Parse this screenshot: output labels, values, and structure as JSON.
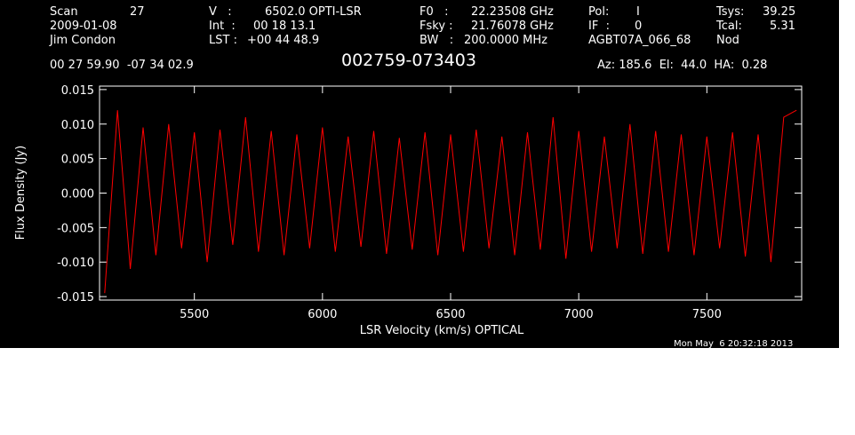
{
  "header": {
    "scan_label": "Scan",
    "scan_number": "27",
    "date": "2009-01-08",
    "observer": "Jim Condon",
    "velocity_label": "V   :",
    "velocity_value": "6502.0 OPTI-LSR",
    "int_label": "Int  :",
    "int_value": "00 18 13.1",
    "lst_label": "LST :",
    "lst_value": "+00 44 48.9",
    "f0_label": "F0   :",
    "f0_value": "22.23508 GHz",
    "fsky_label": "Fsky :",
    "fsky_value": "21.76078 GHz",
    "bw_label": "BW   :",
    "bw_value": "200.0000 MHz",
    "pol_label": "Pol:",
    "pol_value": "I",
    "if_label": "IF  :",
    "if_value": "0",
    "project": "AGBT07A_066_68",
    "tsys_label": "Tsys:",
    "tsys_value": "39.25",
    "tcal_label": "Tcal:",
    "tcal_value": "5.31",
    "mode": "Nod",
    "coords": "00 27 59.90  -07 34 02.9",
    "source": "002759-073403",
    "az_el_ha": "Az: 185.6  El:  44.0  HA:  0.28",
    "timestamp": "Mon May  6 20:32:18 2013"
  },
  "colors": {
    "background": "#000000",
    "axes": "#ffffff",
    "series": "#ff0000"
  },
  "chart_data": {
    "type": "line",
    "xlabel": "LSR Velocity (km/s) OPTICAL",
    "ylabel": "Flux Density (Jy)",
    "xlim": [
      5130,
      7870
    ],
    "ylim": [
      -0.0155,
      0.0155
    ],
    "xticks": [
      5500,
      6000,
      6500,
      7000,
      7500
    ],
    "xtick_labels": [
      "5500",
      "6000",
      "6500",
      "7000",
      "7500"
    ],
    "yticks": [
      -0.015,
      -0.01,
      -0.005,
      0.0,
      0.005,
      0.01,
      0.015
    ],
    "ytick_labels": [
      "-0.015",
      "-0.010",
      "-0.005",
      "0.000",
      "0.005",
      "0.010",
      "0.015"
    ],
    "grid": false,
    "series": [
      {
        "x": [
          5150,
          5200,
          5250,
          5300,
          5350,
          5400,
          5450,
          5500,
          5550,
          5600,
          5650,
          5700,
          5750,
          5800,
          5850,
          5900,
          5950,
          6000,
          6050,
          6100,
          6150,
          6200,
          6250,
          6300,
          6350,
          6400,
          6450,
          6500,
          6550,
          6600,
          6650,
          6700,
          6750,
          6800,
          6850,
          6900,
          6950,
          7000,
          7050,
          7100,
          7150,
          7200,
          7250,
          7300,
          7350,
          7400,
          7450,
          7500,
          7550,
          7600,
          7650,
          7700,
          7750,
          7800,
          7850
        ],
        "values": [
          -0.0145,
          0.012,
          -0.011,
          0.0095,
          -0.009,
          0.01,
          -0.008,
          0.0088,
          -0.01,
          0.0092,
          -0.0075,
          0.011,
          -0.0085,
          0.009,
          -0.009,
          0.0085,
          -0.008,
          0.0095,
          -0.0085,
          0.0082,
          -0.0078,
          0.009,
          -0.0088,
          0.008,
          -0.0082,
          0.0088,
          -0.009,
          0.0085,
          -0.0085,
          0.0092,
          -0.008,
          0.0082,
          -0.009,
          0.0088,
          -0.0082,
          0.011,
          -0.0095,
          0.009,
          -0.0085,
          0.0082,
          -0.008,
          0.01,
          -0.0088,
          0.009,
          -0.0085,
          0.0085,
          -0.009,
          0.0082,
          -0.008,
          0.0088,
          -0.0092,
          0.0085,
          -0.01,
          0.011,
          0.012
        ]
      }
    ]
  }
}
